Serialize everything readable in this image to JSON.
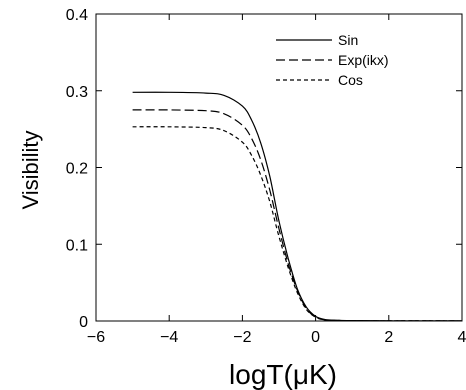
{
  "chart_data": {
    "type": "line",
    "xlabel": "logT(μK)",
    "ylabel": "Visibility",
    "xlim": [
      -6,
      4
    ],
    "ylim": [
      0,
      0.4
    ],
    "xticks": [
      -6,
      -4,
      -2,
      0,
      2,
      4
    ],
    "yticks": [
      0,
      0.1,
      0.2,
      0.3,
      0.4
    ],
    "xtick_labels": [
      "−6",
      "−4",
      "−2",
      "0",
      "2",
      "4"
    ],
    "ytick_labels": [
      "0",
      "0.1",
      "0.2",
      "0.3",
      "0.4"
    ],
    "grid": false,
    "legend_position": "top-right",
    "series": [
      {
        "name": "Sin",
        "style": "solid",
        "x": [
          -5,
          -4,
          -3,
          -2.5,
          -2,
          -1.75,
          -1.5,
          -1.25,
          -1,
          -0.75,
          -0.5,
          -0.25,
          0,
          0.25,
          0.5,
          1,
          2,
          3,
          4
        ],
        "y": [
          0.298,
          0.298,
          0.297,
          0.294,
          0.28,
          0.262,
          0.232,
          0.188,
          0.13,
          0.082,
          0.042,
          0.018,
          0.006,
          0.002,
          0.001,
          0.0005,
          0.0003,
          0.0003,
          0.0003
        ]
      },
      {
        "name": "Exp(ikx)",
        "style": "dashed",
        "x": [
          -5,
          -4,
          -3,
          -2.5,
          -2,
          -1.75,
          -1.5,
          -1.25,
          -1,
          -0.75,
          -0.5,
          -0.25,
          0,
          0.25,
          0.5,
          1,
          2,
          3,
          4
        ],
        "y": [
          0.275,
          0.275,
          0.274,
          0.27,
          0.255,
          0.238,
          0.21,
          0.17,
          0.12,
          0.075,
          0.04,
          0.016,
          0.005,
          0.0015,
          0.0008,
          0.0004,
          0.0003,
          0.0003,
          0.0003
        ]
      },
      {
        "name": "Cos",
        "style": "dotted",
        "x": [
          -5,
          -4,
          -3,
          -2.5,
          -2,
          -1.75,
          -1.5,
          -1.25,
          -1,
          -0.75,
          -0.5,
          -0.25,
          0,
          0.25,
          0.5,
          1,
          2,
          3,
          4
        ],
        "y": [
          0.253,
          0.253,
          0.252,
          0.248,
          0.233,
          0.216,
          0.19,
          0.155,
          0.11,
          0.07,
          0.037,
          0.015,
          0.005,
          0.0015,
          0.0008,
          0.0004,
          0.0003,
          0.0003,
          0.0003
        ]
      }
    ]
  }
}
